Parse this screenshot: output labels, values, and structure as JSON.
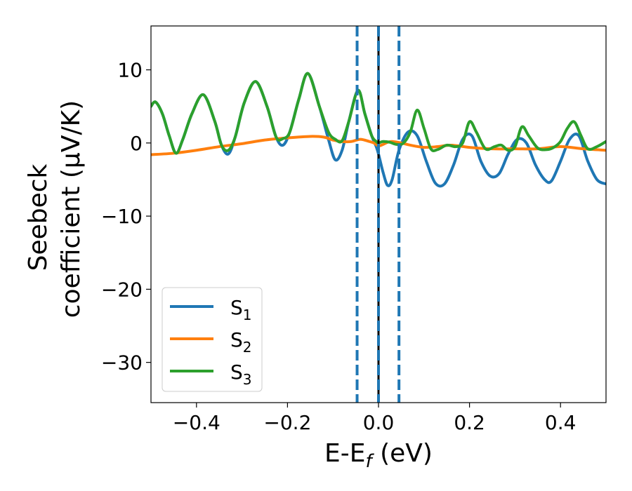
{
  "chart_data": {
    "type": "line",
    "xlabel": "E-E_f (eV)",
    "xlabel_parts": {
      "main": "E-E",
      "sub": "f",
      "unit": " (eV)"
    },
    "ylabel_line1": "Seebeck",
    "ylabel_line2": "coefficient  (μV/K)",
    "xlim": [
      -0.5,
      0.5
    ],
    "ylim": [
      -35.5,
      16
    ],
    "xticks": [
      -0.4,
      -0.2,
      0.0,
      0.2,
      0.4
    ],
    "xtick_labels": [
      "−0.4",
      "−0.2",
      "0.0",
      "0.2",
      "0.4"
    ],
    "yticks": [
      10,
      0,
      -10,
      -20,
      -30
    ],
    "ytick_labels": [
      "10",
      "0",
      "−10",
      "−20",
      "−30"
    ],
    "grid": false,
    "legend_position": "lower-left",
    "series": [
      {
        "name": "S_1",
        "label_main": "S",
        "label_sub": "1",
        "color": "#1f77b4",
        "x": [
          -0.5,
          -0.49,
          -0.475,
          -0.46,
          -0.445,
          -0.43,
          -0.41,
          -0.385,
          -0.36,
          -0.345,
          -0.33,
          -0.315,
          -0.295,
          -0.27,
          -0.245,
          -0.225,
          -0.21,
          -0.195,
          -0.175,
          -0.155,
          -0.13,
          -0.11,
          -0.095,
          -0.08,
          -0.065,
          -0.045,
          -0.03,
          -0.015,
          -0.005,
          0.0,
          0.01,
          0.02,
          0.03,
          0.045,
          0.065,
          0.085,
          0.105,
          0.125,
          0.145,
          0.165,
          0.185,
          0.205,
          0.225,
          0.245,
          0.265,
          0.285,
          0.305,
          0.325,
          0.345,
          0.365,
          0.38,
          0.4,
          0.42,
          0.44,
          0.46,
          0.48,
          0.5
        ],
        "y": [
          5.0,
          5.6,
          4.0,
          1.0,
          -1.4,
          0.5,
          4.0,
          6.6,
          3.0,
          -0.3,
          -1.5,
          0.8,
          5.5,
          8.4,
          5.0,
          0.8,
          -0.3,
          1.5,
          6.0,
          9.5,
          5.0,
          0.5,
          -2.3,
          -1.0,
          3.0,
          7.2,
          4.0,
          1.0,
          -0.5,
          -1.5,
          -4.0,
          -5.8,
          -5.0,
          -1.0,
          1.5,
          1.0,
          -2.5,
          -5.5,
          -5.6,
          -3.0,
          0.5,
          1.0,
          -2.5,
          -4.5,
          -4.2,
          -1.5,
          0.5,
          0.0,
          -3.0,
          -5.0,
          -5.2,
          -2.5,
          0.5,
          1.0,
          -2.5,
          -5.0,
          -5.6
        ]
      },
      {
        "name": "S_2",
        "label_main": "S",
        "label_sub": "2",
        "color": "#ff7f0e",
        "x": [
          -0.5,
          -0.45,
          -0.4,
          -0.35,
          -0.3,
          -0.25,
          -0.2,
          -0.15,
          -0.12,
          -0.1,
          -0.08,
          -0.06,
          -0.04,
          -0.02,
          -0.01,
          0.0,
          0.01,
          0.02,
          0.03,
          0.05,
          0.07,
          0.1,
          0.13,
          0.16,
          0.2,
          0.25,
          0.3,
          0.35,
          0.4,
          0.45,
          0.5
        ],
        "y": [
          -1.6,
          -1.4,
          -1.0,
          -0.5,
          -0.1,
          0.4,
          0.7,
          0.9,
          0.8,
          0.4,
          0.2,
          0.2,
          0.5,
          0.2,
          0.0,
          -0.4,
          -0.2,
          0.1,
          0.2,
          0.0,
          -0.3,
          -0.6,
          -0.5,
          -0.3,
          -0.6,
          -0.8,
          -0.8,
          -0.8,
          -0.5,
          -0.8,
          -1.0
        ]
      },
      {
        "name": "S_3",
        "label_main": "S",
        "label_sub": "3",
        "color": "#2ca02c",
        "x": [
          -0.5,
          -0.49,
          -0.475,
          -0.46,
          -0.445,
          -0.43,
          -0.41,
          -0.385,
          -0.36,
          -0.345,
          -0.33,
          -0.315,
          -0.295,
          -0.27,
          -0.245,
          -0.225,
          -0.21,
          -0.195,
          -0.175,
          -0.155,
          -0.13,
          -0.11,
          -0.095,
          -0.08,
          -0.065,
          -0.045,
          -0.03,
          -0.015,
          -0.005,
          0.0,
          0.01,
          0.025,
          0.04,
          0.055,
          0.07,
          0.085,
          0.1,
          0.115,
          0.13,
          0.15,
          0.17,
          0.185,
          0.2,
          0.215,
          0.235,
          0.255,
          0.27,
          0.285,
          0.3,
          0.315,
          0.33,
          0.35,
          0.37,
          0.385,
          0.4,
          0.415,
          0.43,
          0.445,
          0.46,
          0.48,
          0.5
        ],
        "y": [
          5.0,
          5.6,
          4.0,
          1.0,
          -1.4,
          0.5,
          4.0,
          6.6,
          3.0,
          -0.3,
          -1.0,
          0.8,
          5.5,
          8.4,
          5.0,
          0.8,
          0.6,
          1.5,
          6.0,
          9.5,
          5.0,
          1.5,
          0.5,
          0.3,
          3.0,
          7.2,
          4.0,
          1.0,
          0.2,
          0.0,
          0.2,
          0.1,
          -0.2,
          0.0,
          1.5,
          4.5,
          2.0,
          -0.8,
          -0.9,
          -0.3,
          -0.5,
          0.0,
          2.9,
          1.5,
          -0.8,
          -0.5,
          -0.3,
          -1.0,
          -0.5,
          2.2,
          1.0,
          -0.7,
          -0.9,
          -0.6,
          0.2,
          2.0,
          2.9,
          1.0,
          -0.8,
          -0.5,
          0.2
        ]
      }
    ],
    "vlines": [
      {
        "x": -0.047,
        "color": "#1f77b4",
        "style": "dashed"
      },
      {
        "x": 0.0,
        "color": "#000000",
        "style": "solid"
      },
      {
        "x": 0.0,
        "color": "#1f77b4",
        "style": "dashed"
      },
      {
        "x": 0.045,
        "color": "#1f77b4",
        "style": "dashed"
      }
    ]
  }
}
